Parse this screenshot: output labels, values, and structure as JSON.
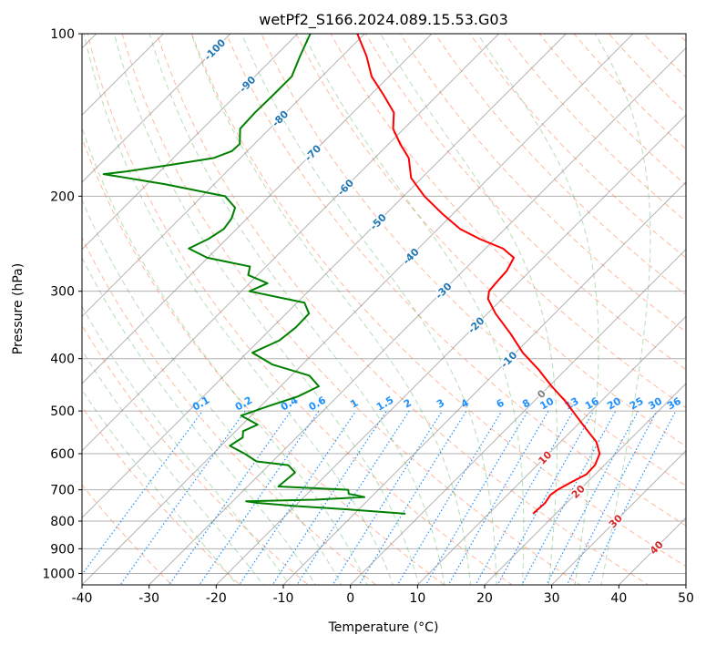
{
  "chart_data": {
    "type": "line",
    "title": "wetPf2_S166.2024.089.15.53.G03",
    "xlabel": "Temperature (°C)",
    "ylabel": "Pressure (hPa)",
    "xlim": [
      -40,
      50
    ],
    "ylim": [
      1050,
      100
    ],
    "y_scale": "log",
    "skew": true,
    "grid": true,
    "x_ticks": [
      "-40",
      "-30",
      "-20",
      "-10",
      "0",
      "10",
      "20",
      "30",
      "40",
      "50"
    ],
    "y_ticks": [
      "100",
      "200",
      "300",
      "400",
      "500",
      "600",
      "700",
      "800",
      "900",
      "1000"
    ],
    "colors": {
      "temperature": "#ff0000",
      "dewpoint": "#008000",
      "dry_adiabat": "#ff7f50",
      "moist_adiabat": "#2ca02c",
      "mixing_ratio": "#1e90ff",
      "isotherm": "#808080",
      "isotherm_label": "#1f77b4",
      "dry_adiabat_label": "#d62728"
    },
    "series": [
      {
        "key": "temperature",
        "pressure": [
          775,
          740,
          715,
          700,
          680,
          655,
          630,
          600,
          570,
          540,
          510,
          480,
          450,
          420,
          390,
          360,
          330,
          310,
          300,
          290,
          275,
          260,
          250,
          240,
          230,
          215,
          200,
          185,
          170,
          160,
          150,
          140,
          130,
          120,
          110,
          100
        ],
        "temperature": [
          16.6,
          16.8,
          16.4,
          16.7,
          17.5,
          18.7,
          18.6,
          17.6,
          15.3,
          11.9,
          8.4,
          4.7,
          0.4,
          -3.9,
          -8.9,
          -13.5,
          -18.8,
          -22.1,
          -23.1,
          -23.3,
          -23.5,
          -24.4,
          -27.4,
          -32.3,
          -36.7,
          -41.8,
          -46.9,
          -51.6,
          -54.9,
          -58.3,
          -61.6,
          -63.9,
          -68.0,
          -72.6,
          -76.4,
          -81.1
        ]
      },
      {
        "key": "dewpoint",
        "pressure": [
          775,
          760,
          750,
          740,
          735,
          730,
          722,
          712,
          700,
          690,
          650,
          630,
          620,
          600,
          580,
          560,
          545,
          530,
          510,
          490,
          470,
          450,
          430,
          410,
          390,
          370,
          350,
          330,
          315,
          300,
          290,
          280,
          270,
          260,
          250,
          240,
          230,
          220,
          210,
          200,
          190,
          182,
          180,
          175,
          170,
          165,
          160,
          150,
          140,
          130,
          120,
          110,
          100
        ],
        "dewpoint": [
          -2.4,
          -12.3,
          -20.1,
          -26.1,
          -28.0,
          -18.0,
          -11.0,
          -13.8,
          -14.5,
          -25.4,
          -25.0,
          -27.1,
          -32.4,
          -35.3,
          -38.7,
          -38.0,
          -38.9,
          -37.7,
          -41.5,
          -38.9,
          -35.9,
          -34.3,
          -37.3,
          -44.5,
          -49.2,
          -47.0,
          -46.5,
          -46.6,
          -48.9,
          -58.8,
          -57.3,
          -61.4,
          -62.4,
          -70.1,
          -74.2,
          -72.7,
          -71.9,
          -72.3,
          -73.4,
          -76.6,
          -87.4,
          -98.0,
          -95.0,
          -89.4,
          -84.0,
          -82.3,
          -82.2,
          -84.4,
          -84.6,
          -84.5,
          -84.5,
          -86.3,
          -88.1
        ]
      }
    ],
    "isotherm_labels": [
      "-100",
      "-90",
      "-80",
      "-70",
      "-60",
      "-50",
      "-40",
      "-30",
      "-20",
      "-10",
      "0"
    ],
    "isotherm_label_values": [
      -100,
      -90,
      -80,
      -70,
      -60,
      -50,
      -40,
      -30,
      -20,
      -10,
      0
    ],
    "dry_adiabat_labels": [
      "10",
      "20",
      "30",
      "40"
    ],
    "dry_adiabat_label_values": [
      10,
      20,
      30,
      40
    ],
    "mixing_ratio_labels": [
      "0.1",
      "0.2",
      "0.4",
      "0.6",
      "1",
      "1.5",
      "2",
      "3",
      "4",
      "6",
      "8",
      "10",
      "13",
      "16",
      "20",
      "25",
      "30",
      "36"
    ],
    "mixing_ratio_values": [
      0.1,
      0.2,
      0.4,
      0.6,
      1,
      1.5,
      2,
      3,
      4,
      6,
      8,
      10,
      13,
      16,
      20,
      25,
      30,
      36
    ]
  }
}
